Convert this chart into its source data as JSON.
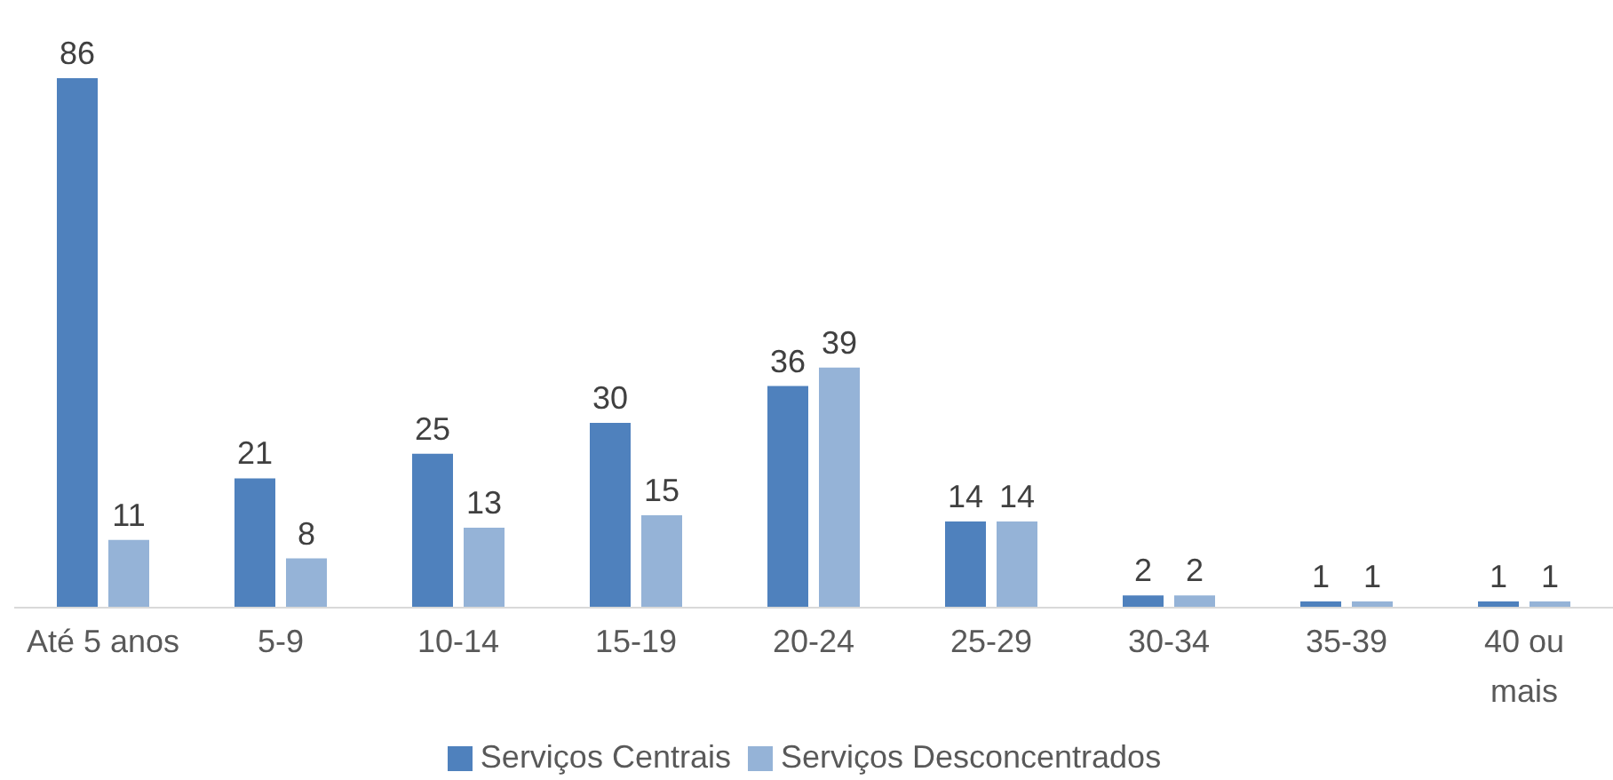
{
  "chart_data": {
    "type": "bar",
    "categories": [
      "Até 5 anos",
      "5-9",
      "10-14",
      "15-19",
      "20-24",
      "25-29",
      "30-34",
      "35-39",
      "40 ou mais"
    ],
    "series": [
      {
        "name": "Serviços Centrais",
        "color": "#4f81bd",
        "values": [
          86,
          21,
          25,
          30,
          36,
          14,
          2,
          1,
          1
        ]
      },
      {
        "name": "Serviços Desconcentrados",
        "color": "#95b3d7",
        "values": [
          11,
          8,
          13,
          15,
          39,
          14,
          2,
          1,
          1
        ]
      }
    ],
    "data_labels": true,
    "legend": "bottom",
    "grid": false
  }
}
